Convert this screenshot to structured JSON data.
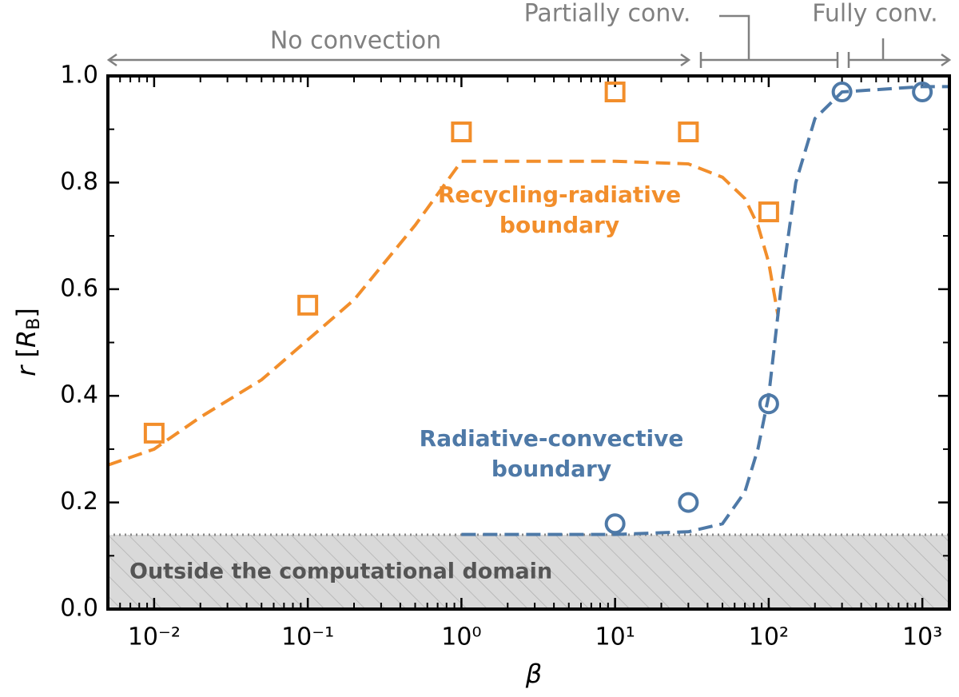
{
  "chart_data": {
    "type": "scatter",
    "xscale": "log",
    "xlabel": "β",
    "ylabel": [
      "r",
      " [",
      "R",
      "B",
      "]"
    ],
    "xlim": [
      0.005,
      1500
    ],
    "ylim": [
      0,
      1
    ],
    "xticks": [
      {
        "value": 0.01,
        "label": "10⁻²"
      },
      {
        "value": 0.1,
        "label": "10⁻¹"
      },
      {
        "value": 1,
        "label": "10⁰"
      },
      {
        "value": 10,
        "label": "10¹"
      },
      {
        "value": 100,
        "label": "10²"
      },
      {
        "value": 1000,
        "label": "10³"
      }
    ],
    "yticks": [
      {
        "value": 0,
        "label": "0.0"
      },
      0.2,
      0.4,
      0.6,
      0.8,
      {
        "value": 1,
        "label": "1.0"
      }
    ],
    "regions": [
      "No convection",
      "Partially conv.",
      "Fully conv."
    ],
    "shaded_label": "Outside the computational domain",
    "series": [
      {
        "annotation": [
          "Recycling-radiative",
          "boundary"
        ],
        "color": "#f28e2b",
        "marker": "square",
        "x": [
          0.01,
          0.1,
          1,
          10,
          30,
          100
        ],
        "values": [
          0.33,
          0.57,
          0.895,
          0.97,
          0.895,
          0.745
        ],
        "fit": {
          "x": [
            0.005,
            0.01,
            0.02,
            0.05,
            0.1,
            0.2,
            0.5,
            1,
            3,
            10,
            30,
            50,
            70,
            85,
            100,
            115
          ],
          "values": [
            0.27,
            0.3,
            0.36,
            0.43,
            0.505,
            0.58,
            0.72,
            0.84,
            0.84,
            0.84,
            0.835,
            0.81,
            0.77,
            0.72,
            0.65,
            0.55
          ]
        }
      },
      {
        "annotation": [
          "Radiative-convective",
          "boundary"
        ],
        "color": "#4e79a7",
        "marker": "circle",
        "x": [
          10,
          30,
          100,
          300,
          1000
        ],
        "values": [
          0.16,
          0.2,
          0.385,
          0.97,
          0.97
        ],
        "fit": {
          "x": [
            1,
            10,
            30,
            50,
            70,
            85,
            100,
            120,
            150,
            200,
            300,
            1000,
            1500
          ],
          "values": [
            0.14,
            0.14,
            0.145,
            0.16,
            0.22,
            0.3,
            0.4,
            0.6,
            0.8,
            0.92,
            0.97,
            0.98,
            0.98
          ]
        }
      }
    ]
  }
}
